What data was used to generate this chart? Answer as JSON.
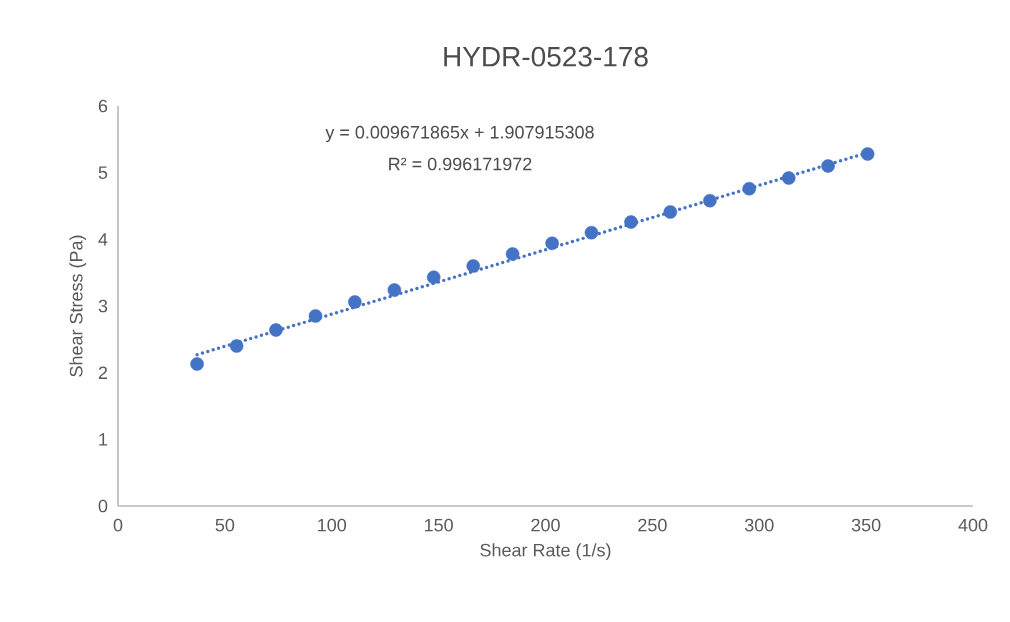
{
  "chart_data": {
    "type": "scatter",
    "title": "HYDR-0523-178",
    "xlabel": "Shear Rate (1/s)",
    "ylabel": "Shear Stress (Pa)",
    "annotations": [
      "y = 0.009671865x + 1.907915308",
      "R² = 0.996171972"
    ],
    "xlim": [
      0,
      400
    ],
    "xticks": [
      0,
      50,
      100,
      150,
      200,
      250,
      300,
      350,
      400
    ],
    "ylim": [
      0,
      6
    ],
    "yticks": [
      0,
      1,
      2,
      3,
      4,
      5,
      6
    ],
    "grid": false,
    "marker": "circle",
    "series": [
      {
        "color": "#4472c4",
        "x": [
          37,
          55.5,
          73.9,
          92.4,
          110.8,
          129.3,
          147.7,
          166.2,
          184.6,
          203.1,
          221.5,
          240,
          258.4,
          276.9,
          295.3,
          313.8,
          332.2,
          350.7
        ],
        "values": [
          2.13,
          2.4,
          2.64,
          2.85,
          3.06,
          3.24,
          3.43,
          3.6,
          3.78,
          3.94,
          4.1,
          4.26,
          4.41,
          4.58,
          4.76,
          4.92,
          5.1,
          5.28
        ]
      },
      {
        "type": "line",
        "line_style": "dotted",
        "marker": "none",
        "color": "#4472c4",
        "x": [
          37,
          350.7
        ],
        "values": [
          2.27,
          5.3
        ]
      }
    ]
  }
}
